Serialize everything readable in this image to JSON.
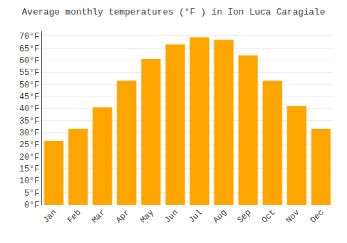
{
  "chart_data": {
    "type": "bar",
    "title": "Average monthly temperatures (°F ) in Ion Luca Caragiale",
    "categories": [
      "Jan",
      "Feb",
      "Mar",
      "Apr",
      "May",
      "Jun",
      "Jul",
      "Aug",
      "Sep",
      "Oct",
      "Nov",
      "Dec"
    ],
    "values": [
      26.5,
      31.5,
      40.5,
      51.5,
      60.5,
      66.5,
      69.5,
      68.5,
      62.0,
      51.5,
      41.0,
      31.5
    ],
    "color": "#FFA500",
    "ylim": [
      0,
      72
    ],
    "yticks": [
      {
        "value": 0,
        "label": "0°F"
      },
      {
        "value": 5,
        "label": "5°F"
      },
      {
        "value": 10,
        "label": "10°F"
      },
      {
        "value": 15,
        "label": "15°F"
      },
      {
        "value": 20,
        "label": "20°F"
      },
      {
        "value": 25,
        "label": "25°F"
      },
      {
        "value": 30,
        "label": "30°F"
      },
      {
        "value": 35,
        "label": "35°F"
      },
      {
        "value": 40,
        "label": "40°F"
      },
      {
        "value": 45,
        "label": "45°F"
      },
      {
        "value": 50,
        "label": "50°F"
      },
      {
        "value": 55,
        "label": "55°F"
      },
      {
        "value": 60,
        "label": "60°F"
      },
      {
        "value": 65,
        "label": "65°F"
      },
      {
        "value": 70,
        "label": "70°F"
      }
    ],
    "grid": true
  }
}
